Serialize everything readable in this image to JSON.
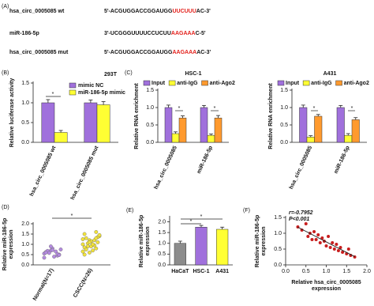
{
  "sequences": {
    "panel": "(A)",
    "site_color": "#e3201b",
    "rows": [
      {
        "label": "hsa_circ_0005085 wt",
        "prefix": "5'-ACGUGGACCGGAUGG",
        "site": "UUCUUU",
        "suffix": "AC-3'"
      },
      {
        "label": "miR-186-5p",
        "prefix": "3'-UCGGGUUUUCCUCUU",
        "site": "AAGAAA",
        "suffix": "C-5'"
      },
      {
        "label": "hsa_circ_0005085 mut",
        "prefix": "5'-ACGUGGACCGGAUGG",
        "site": "AAGAAA",
        "suffix": "AC-3'"
      }
    ]
  },
  "chart_data": [
    {
      "type": "bar",
      "panel": "(B)",
      "title": "293T",
      "y_label": "Relative luciferase activity",
      "legend": "upper right",
      "categories": [
        "hsa_circ_0005085 wt",
        "hsa_circ_0005085 mut"
      ],
      "series": [
        {
          "name": "mimic NC",
          "color": "#a070dc",
          "values": [
            1.0,
            1.0
          ],
          "errors": [
            0.08,
            0.07
          ]
        },
        {
          "name": "miR-186-5p mimic",
          "color": "#ffff33",
          "values": [
            0.25,
            0.95
          ],
          "errors": [
            0.05,
            0.08
          ]
        }
      ],
      "ylim": [
        0,
        1.5
      ],
      "yticks": [
        {
          "value": 0,
          "label": "0.0"
        },
        {
          "value": 0.5,
          "label": "0.5"
        },
        {
          "value": 1,
          "label": "1.0"
        },
        {
          "value": 1.5,
          "label": "1.5"
        }
      ],
      "annotations": [
        "*"
      ]
    },
    {
      "type": "bar",
      "panel": "(C)",
      "title": "HSC-1",
      "y_label": "Relative RNA enrichment",
      "legend": "top",
      "categories": [
        "hsa_circ_0005085",
        "miR-186-5p"
      ],
      "series": [
        {
          "name": "Input",
          "color": "#a070dc",
          "values": [
            1.0,
            1.0
          ],
          "errors": [
            0.07,
            0.06
          ]
        },
        {
          "name": "anti-IgG",
          "color": "#ffff33",
          "values": [
            0.25,
            0.2
          ],
          "errors": [
            0.05,
            0.04
          ]
        },
        {
          "name": "anti-Ago2",
          "color": "#ff9a2e",
          "values": [
            0.7,
            0.7
          ],
          "errors": [
            0.06,
            0.07
          ]
        }
      ],
      "ylim": [
        0,
        1.5
      ],
      "yticks": [
        {
          "value": 0,
          "label": "0.0"
        },
        {
          "value": 0.5,
          "label": "0.5"
        },
        {
          "value": 1,
          "label": "1.0"
        },
        {
          "value": 1.5,
          "label": "1.5"
        }
      ],
      "annotations": [
        "*",
        "*"
      ]
    },
    {
      "type": "bar",
      "title": "A431",
      "y_label": "Relative RNA enrichment",
      "legend": "top",
      "categories": [
        "hsa_circ_0005085",
        "miR-186-5p"
      ],
      "series": [
        {
          "name": "Input",
          "color": "#a070dc",
          "values": [
            1.0,
            1.0
          ],
          "errors": [
            0.07,
            0.06
          ]
        },
        {
          "name": "anti-IgG",
          "color": "#ffff33",
          "values": [
            0.15,
            0.2
          ],
          "errors": [
            0.04,
            0.05
          ]
        },
        {
          "name": "anti-Ago2",
          "color": "#ff9a2e",
          "values": [
            0.75,
            0.65
          ],
          "errors": [
            0.05,
            0.06
          ]
        }
      ],
      "ylim": [
        0,
        1.5
      ],
      "yticks": [
        {
          "value": 0,
          "label": "0.0"
        },
        {
          "value": 0.5,
          "label": "0.5"
        },
        {
          "value": 1,
          "label": "1.0"
        },
        {
          "value": 1.5,
          "label": "1.5"
        }
      ],
      "annotations": [
        "*",
        "*"
      ]
    },
    {
      "type": "strip",
      "panel": "(D)",
      "y_label": [
        "Relative miR-186-5p",
        "expression"
      ],
      "categories": [
        "Normal(N=17)",
        "CSCC(N=26)"
      ],
      "colors": [
        "#b48be0",
        "#f2e33a"
      ],
      "values": [
        [
          0.55,
          0.7,
          0.45,
          0.62,
          0.8,
          0.5,
          0.68,
          0.4,
          0.75,
          0.58,
          0.65,
          0.35,
          0.9,
          0.52,
          0.6,
          0.72,
          0.48
        ],
        [
          1.0,
          1.2,
          0.8,
          1.5,
          0.9,
          1.1,
          1.3,
          0.7,
          1.4,
          1.05,
          0.95,
          1.25,
          0.6,
          1.6,
          0.85,
          1.15,
          1.35,
          0.75,
          1.0,
          1.45,
          0.9,
          1.2,
          0.65,
          1.1,
          1.3,
          0.5
        ]
      ],
      "ylim": [
        0,
        2
      ],
      "yticks": [
        {
          "value": 0,
          "label": "0.0"
        },
        {
          "value": 0.5,
          "label": "0.5"
        },
        {
          "value": 1,
          "label": "1.0"
        },
        {
          "value": 1.5,
          "label": "1.5"
        },
        {
          "value": 2,
          "label": "2.0"
        }
      ],
      "annotations": [
        "*"
      ]
    },
    {
      "type": "bar",
      "panel": "(E)",
      "y_label": [
        "Relative miR-186-5p",
        "expression"
      ],
      "categories": [
        "HaCaT",
        "HSC-1",
        "A431"
      ],
      "values": [
        1.0,
        1.75,
        1.65
      ],
      "errors": [
        0.1,
        0.08,
        0.1
      ],
      "colors": [
        "#8c8c8c",
        "#a070dc",
        "#ffff33"
      ],
      "ylim": [
        0,
        2.2
      ],
      "yticks": [
        {
          "value": 0,
          "label": "0.0"
        },
        {
          "value": 0.5,
          "label": "0.5"
        },
        {
          "value": 1,
          "label": "1.0"
        },
        {
          "value": 1.5,
          "label": "1.5"
        },
        {
          "value": 2,
          "label": "2.0"
        }
      ],
      "annotations": [
        "*",
        "*"
      ]
    },
    {
      "type": "scatter",
      "panel": "(F)",
      "y_label": [
        "Relative miR-186-5p",
        "expression"
      ],
      "x_label": [
        "Relative hsa_circ_0005085",
        "expression"
      ],
      "color": "#c81e1e",
      "trendline": true,
      "x": [
        0.3,
        0.4,
        0.5,
        0.55,
        0.6,
        0.7,
        0.75,
        0.8,
        0.85,
        0.9,
        0.95,
        1.0,
        1.05,
        1.1,
        1.15,
        1.2,
        1.25,
        1.3,
        1.35,
        1.4,
        1.5,
        1.55,
        1.6,
        1.7,
        0.65
      ],
      "y": [
        1.2,
        1.1,
        1.3,
        0.9,
        1.0,
        1.05,
        0.8,
        0.95,
        0.7,
        0.85,
        0.75,
        0.6,
        0.9,
        0.55,
        0.7,
        0.5,
        0.65,
        0.45,
        0.55,
        0.4,
        0.35,
        0.5,
        0.3,
        0.25,
        0.8
      ],
      "xlim": [
        0,
        2
      ],
      "xticks": [
        {
          "value": 0,
          "label": "0.0"
        },
        {
          "value": 0.5,
          "label": "0.5"
        },
        {
          "value": 1,
          "label": "1.0"
        },
        {
          "value": 1.5,
          "label": "1.5"
        },
        {
          "value": 2,
          "label": "2.0"
        }
      ],
      "ylim": [
        0,
        1.5
      ],
      "yticks": [
        {
          "value": 0,
          "label": "0.0"
        },
        {
          "value": 0.5,
          "label": "0.5"
        },
        {
          "value": 1,
          "label": "1.0"
        },
        {
          "value": 1.5,
          "label": "1.5"
        }
      ],
      "annotations": [
        "r=-0.7952",
        "P<0.001"
      ]
    }
  ]
}
